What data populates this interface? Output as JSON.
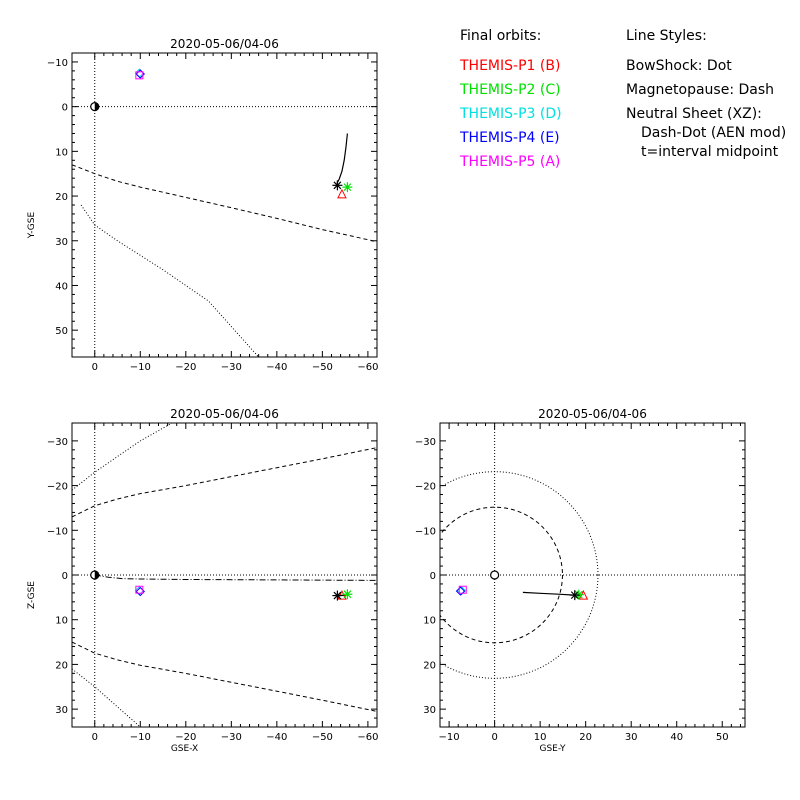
{
  "legend": {
    "orbits_title": "Final orbits:",
    "probes": [
      {
        "label": "THEMIS-P1 (B)",
        "color": "#ff0000"
      },
      {
        "label": "THEMIS-P2 (C)",
        "color": "#00e000"
      },
      {
        "label": "THEMIS-P3 (D)",
        "color": "#00e0e0"
      },
      {
        "label": "THEMIS-P4 (E)",
        "color": "#0000ff"
      },
      {
        "label": "THEMIS-P5 (A)",
        "color": "#ff00ff"
      }
    ],
    "styles_title": "Line Styles:",
    "styles": [
      "BowShock: Dot",
      "Magnetopause: Dash",
      "Neutral Sheet (XZ):",
      "Dash-Dot (AEN mod)",
      "t=interval midpoint"
    ]
  },
  "chart_data": [
    {
      "type": "scatter",
      "title": "2020-05-06/04-06",
      "xlabel": "",
      "ylabel": "Y-GSE",
      "xlim": [
        5,
        -62
      ],
      "ylim": [
        -12,
        56
      ],
      "xticks": [
        0,
        -10,
        -20,
        -30,
        -40,
        -50,
        -60
      ],
      "yticks": [
        -10,
        0,
        10,
        20,
        30,
        40,
        50
      ],
      "tick_labels_x": [
        "0",
        "−10",
        "−20",
        "−30",
        "−40",
        "−50",
        "−60"
      ],
      "tick_labels_y": [
        "−10",
        "0",
        "10",
        "20",
        "30",
        "40",
        "50"
      ],
      "earth": [
        0,
        0
      ],
      "orbit_track": [
        [
          -55.5,
          6
        ],
        [
          -55.2,
          9
        ],
        [
          -54.8,
          12
        ],
        [
          -54.3,
          14.5
        ],
        [
          -53.7,
          16.2
        ],
        [
          -53.2,
          17.2
        ]
      ],
      "markers": [
        {
          "probe": "P1",
          "symbol": "triangle",
          "color": "#ff0000",
          "x": -54.3,
          "y": 19.5
        },
        {
          "probe": "P2",
          "symbol": "asterisk",
          "color": "#00e000",
          "x": -55.5,
          "y": 18
        },
        {
          "probe": "P3",
          "symbol": "diamond",
          "color": "#00e0e0",
          "x": -9.8,
          "y": -7.5
        },
        {
          "probe": "P4",
          "symbol": "diamond",
          "color": "#0000ff",
          "x": -10,
          "y": -7.3
        },
        {
          "probe": "P5",
          "symbol": "square",
          "color": "#ff00ff",
          "x": -9.8,
          "y": -7
        },
        {
          "probe": "midpoint",
          "symbol": "asterisk",
          "color": "#000000",
          "x": -53.3,
          "y": 17.6
        }
      ],
      "magnetopause": [
        [
          5,
          13
        ],
        [
          0,
          15
        ],
        [
          -5,
          16.7
        ],
        [
          -10,
          18
        ],
        [
          -20,
          20.3
        ],
        [
          -30,
          22.6
        ],
        [
          -40,
          25
        ],
        [
          -50,
          27.5
        ],
        [
          -62,
          30.2
        ]
      ],
      "bowshock": [
        [
          3,
          22
        ],
        [
          0,
          26.5
        ],
        [
          -5,
          30
        ],
        [
          -15,
          36.5
        ],
        [
          -25,
          43.5
        ],
        [
          -36,
          56
        ]
      ],
      "neutral_sheet": [],
      "grid": false
    },
    {
      "type": "scatter",
      "title": "2020-05-06/04-06",
      "xlabel": "GSE-X",
      "ylabel": "Z-GSE",
      "xlim": [
        5,
        -62
      ],
      "ylim": [
        -34,
        34
      ],
      "xticks": [
        0,
        -10,
        -20,
        -30,
        -40,
        -50,
        -60
      ],
      "yticks": [
        -30,
        -20,
        -10,
        0,
        10,
        20,
        30
      ],
      "tick_labels_x": [
        "0",
        "−10",
        "−20",
        "−30",
        "−40",
        "−50",
        "−60"
      ],
      "tick_labels_y": [
        "−30",
        "−20",
        "−10",
        "0",
        "10",
        "20",
        "30"
      ],
      "earth": [
        0,
        0
      ],
      "orbit_track": [
        [
          -53.3,
          4.5
        ],
        [
          -55.2,
          4.6
        ]
      ],
      "markers": [
        {
          "probe": "P1",
          "symbol": "triangle",
          "color": "#ff0000",
          "x": -54.3,
          "y": 4.5
        },
        {
          "probe": "P2",
          "symbol": "asterisk",
          "color": "#00e000",
          "x": -55.5,
          "y": 4.3
        },
        {
          "probe": "P3",
          "symbol": "diamond",
          "color": "#00e0e0",
          "x": -9.8,
          "y": 3.5
        },
        {
          "probe": "P4",
          "symbol": "diamond",
          "color": "#0000ff",
          "x": -10,
          "y": 3.7
        },
        {
          "probe": "P5",
          "symbol": "square",
          "color": "#ff00ff",
          "x": -9.8,
          "y": 3.3
        },
        {
          "probe": "midpoint",
          "symbol": "asterisk",
          "color": "#000000",
          "x": -53.3,
          "y": 4.6
        }
      ],
      "magnetopause": [
        [
          5,
          15
        ],
        [
          0,
          17.5
        ],
        [
          -5,
          19
        ],
        [
          -10,
          20.2
        ],
        [
          -20,
          22
        ],
        [
          -30,
          24
        ],
        [
          -40,
          26
        ],
        [
          -50,
          28
        ],
        [
          -62,
          30.5
        ]
      ],
      "magnetopause_lower": [
        [
          5,
          -13
        ],
        [
          0,
          -15.5
        ],
        [
          -5,
          -17
        ],
        [
          -10,
          -18.2
        ],
        [
          -20,
          -20
        ],
        [
          -30,
          -22
        ],
        [
          -40,
          -24
        ],
        [
          -50,
          -26
        ],
        [
          -62,
          -28.5
        ]
      ],
      "bowshock": [
        [
          5,
          21
        ],
        [
          0,
          25
        ],
        [
          -5,
          29.5
        ],
        [
          -10,
          34
        ]
      ],
      "bowshock_lower": [
        [
          5,
          -19
        ],
        [
          0,
          -23
        ],
        [
          -5,
          -26.5
        ],
        [
          -10,
          -30
        ],
        [
          -17,
          -34
        ]
      ],
      "neutral_sheet": [
        [
          0,
          0
        ],
        [
          -3,
          0.5
        ],
        [
          -6,
          0.8
        ],
        [
          -10,
          0.9
        ],
        [
          -20,
          1.0
        ],
        [
          -40,
          1.1
        ],
        [
          -62,
          1.2
        ]
      ],
      "grid": false
    },
    {
      "type": "scatter",
      "title": "2020-05-06/04-06",
      "xlabel": "GSE-Y",
      "ylabel": "",
      "xlim": [
        -12,
        55
      ],
      "ylim": [
        -34,
        34
      ],
      "xticks": [
        -10,
        0,
        10,
        20,
        30,
        40,
        50
      ],
      "yticks": [
        -30,
        -20,
        -10,
        0,
        10,
        20,
        30
      ],
      "tick_labels_x": [
        "−10",
        "0",
        "10",
        "20",
        "30",
        "40",
        "50"
      ],
      "tick_labels_y": [
        "−30",
        "−20",
        "−10",
        "0",
        "10",
        "20",
        "30"
      ],
      "earth": [
        0,
        0
      ],
      "orbit_track": [
        [
          6.2,
          3.9
        ],
        [
          10,
          4.1
        ],
        [
          14,
          4.3
        ],
        [
          17.6,
          4.5
        ]
      ],
      "markers": [
        {
          "probe": "P1",
          "symbol": "triangle",
          "color": "#ff0000",
          "x": 19.5,
          "y": 4.5
        },
        {
          "probe": "P2",
          "symbol": "asterisk",
          "color": "#00e000",
          "x": 18.5,
          "y": 4.4
        },
        {
          "probe": "P3",
          "symbol": "diamond",
          "color": "#00e0e0",
          "x": -7.3,
          "y": 3.5
        },
        {
          "probe": "P4",
          "symbol": "diamond",
          "color": "#0000ff",
          "x": -7.5,
          "y": 3.6
        },
        {
          "probe": "P5",
          "symbol": "square",
          "color": "#ff00ff",
          "x": -7,
          "y": 3.3
        },
        {
          "probe": "midpoint",
          "symbol": "asterisk",
          "color": "#000000",
          "x": 17.6,
          "y": 4.5
        }
      ],
      "magnetopause_circle_radius": 14.9,
      "bowshock_circle_radius": 22.7,
      "neutral_sheet": [],
      "grid": false
    }
  ]
}
